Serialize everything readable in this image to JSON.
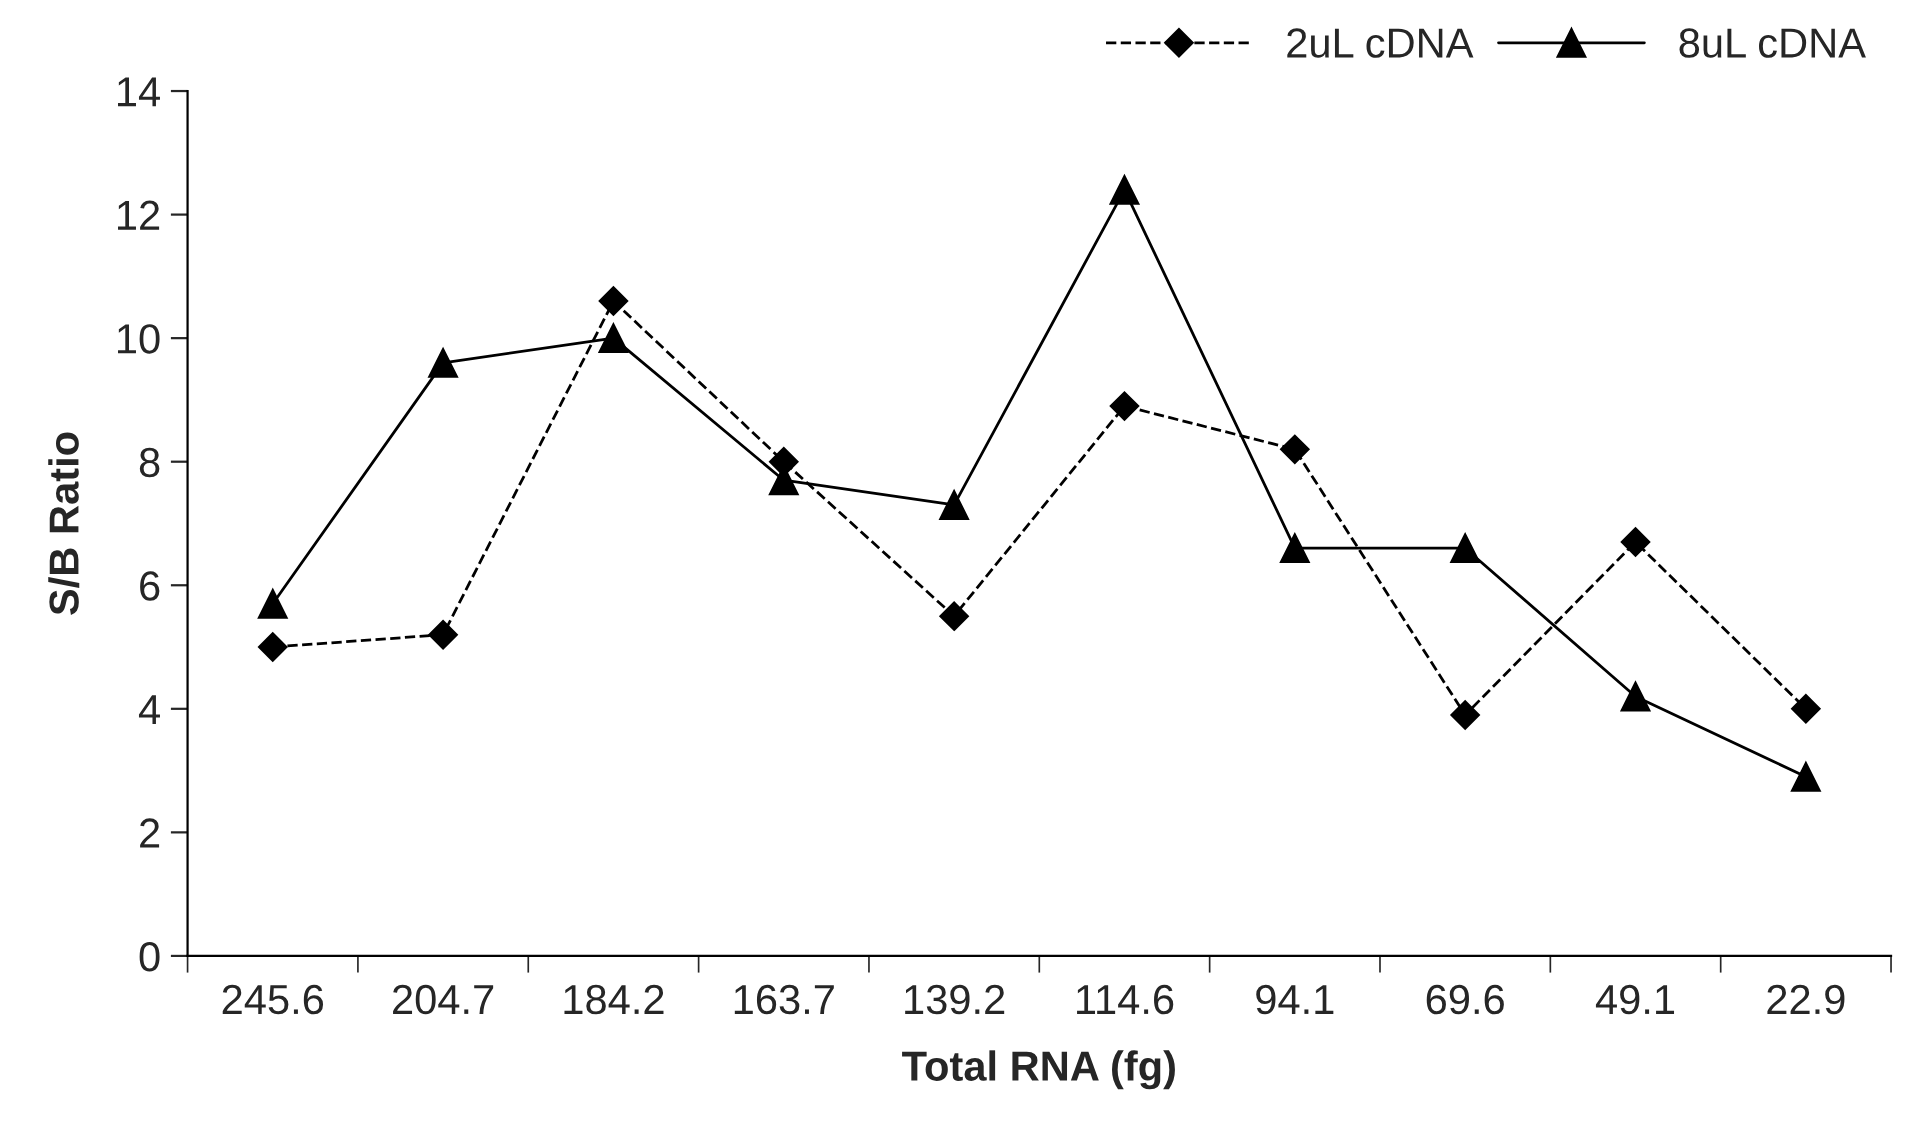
{
  "chart_data": {
    "type": "line",
    "xlabel": "Total RNA (fg)",
    "ylabel": "S/B Ratio",
    "categories": [
      "245.6",
      "204.7",
      "184.2",
      "163.7",
      "139.2",
      "114.6",
      "94.1",
      "69.6",
      "49.1",
      "22.9"
    ],
    "series": [
      {
        "name": "2uL cDNA",
        "color": "#000000",
        "marker": "diamond",
        "line_style": "dashed",
        "values": [
          5.0,
          5.2,
          10.6,
          8.0,
          5.5,
          8.9,
          8.2,
          3.9,
          6.7,
          4.0
        ]
      },
      {
        "name": "8uL cDNA",
        "color": "#000000",
        "marker": "triangle",
        "line_style": "solid",
        "values": [
          5.7,
          9.6,
          10.0,
          7.7,
          7.3,
          12.4,
          6.6,
          6.6,
          4.2,
          2.9
        ]
      }
    ],
    "ylim": [
      0,
      14
    ],
    "yticks": [
      0,
      2,
      4,
      6,
      8,
      10,
      12,
      14
    ],
    "grid": false,
    "legend": "top right"
  }
}
